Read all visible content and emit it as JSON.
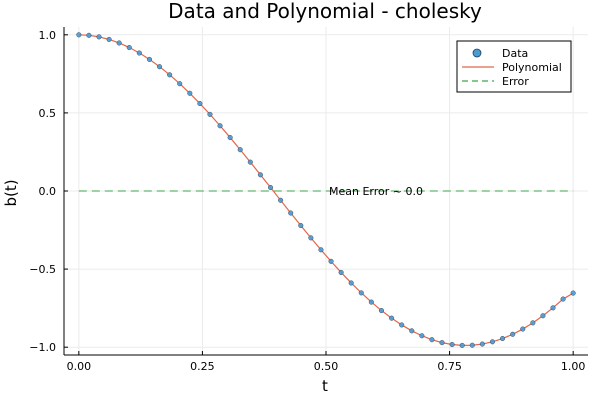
{
  "chart_data": {
    "type": "line",
    "title": "Data and Polynomial - cholesky",
    "xlabel": "t",
    "ylabel": "b(t)",
    "xlim": [
      -0.03,
      1.03
    ],
    "ylim": [
      -1.05,
      1.05
    ],
    "xticks": [
      0.0,
      0.25,
      0.5,
      0.75,
      1.0
    ],
    "xtick_labels": [
      "0.00",
      "0.25",
      "0.50",
      "0.75",
      "1.00"
    ],
    "yticks": [
      -1.0,
      -0.5,
      0.0,
      0.5,
      1.0
    ],
    "ytick_labels": [
      "−1.0",
      "−0.5",
      "0.0",
      "0.5",
      "1.0"
    ],
    "grid": true,
    "legend_position": "top-right",
    "annotation": {
      "text": "Mean Error ~ 0.0",
      "x": 0.5,
      "y": 0.0
    },
    "series": [
      {
        "name": "Data",
        "kind": "scatter",
        "color": "#4a9ad4",
        "x": [
          0.0,
          0.0204,
          0.0408,
          0.0612,
          0.0816,
          0.102,
          0.1224,
          0.1429,
          0.1633,
          0.1837,
          0.2041,
          0.2245,
          0.2449,
          0.2653,
          0.2857,
          0.3061,
          0.3265,
          0.3469,
          0.3673,
          0.3878,
          0.4082,
          0.4286,
          0.449,
          0.4694,
          0.4898,
          0.5102,
          0.5306,
          0.551,
          0.5714,
          0.5918,
          0.6122,
          0.6327,
          0.6531,
          0.6735,
          0.6939,
          0.7143,
          0.7347,
          0.7551,
          0.7755,
          0.7959,
          0.8163,
          0.8367,
          0.8571,
          0.8776,
          0.898,
          0.9184,
          0.9388,
          0.9592,
          0.9796,
          1.0
        ],
        "y": [
          1.0,
          0.9967,
          0.9869,
          0.9705,
          0.9477,
          0.9186,
          0.8835,
          0.8424,
          0.7958,
          0.7439,
          0.687,
          0.6255,
          0.5599,
          0.4905,
          0.4177,
          0.3422,
          0.2643,
          0.1847,
          0.1038,
          0.0222,
          -0.0596,
          -0.1409,
          -0.2212,
          -0.2999,
          -0.3764,
          -0.4505,
          -0.5215,
          -0.5888,
          -0.6522,
          -0.7112,
          -0.7653,
          -0.8142,
          -0.8576,
          -0.8952,
          -0.9267,
          -0.9519,
          -0.9707,
          -0.9829,
          -0.9885,
          -0.9875,
          -0.9798,
          -0.9655,
          -0.9446,
          -0.9174,
          -0.8838,
          -0.8442,
          -0.7988,
          -0.7479,
          -0.6918,
          -0.6536
        ]
      },
      {
        "name": "Polynomial",
        "kind": "line",
        "color": "#e2674a",
        "x": [
          0.0,
          0.0204,
          0.0408,
          0.0612,
          0.0816,
          0.102,
          0.1224,
          0.1429,
          0.1633,
          0.1837,
          0.2041,
          0.2245,
          0.2449,
          0.2653,
          0.2857,
          0.3061,
          0.3265,
          0.3469,
          0.3673,
          0.3878,
          0.4082,
          0.4286,
          0.449,
          0.4694,
          0.4898,
          0.5102,
          0.5306,
          0.551,
          0.5714,
          0.5918,
          0.6122,
          0.6327,
          0.6531,
          0.6735,
          0.6939,
          0.7143,
          0.7347,
          0.7551,
          0.7755,
          0.7959,
          0.8163,
          0.8367,
          0.8571,
          0.8776,
          0.898,
          0.9184,
          0.9388,
          0.9592,
          0.9796,
          1.0
        ],
        "y": [
          1.0,
          0.9967,
          0.9869,
          0.9705,
          0.9477,
          0.9186,
          0.8835,
          0.8424,
          0.7958,
          0.7439,
          0.687,
          0.6255,
          0.5599,
          0.4905,
          0.4177,
          0.3422,
          0.2643,
          0.1847,
          0.1038,
          0.0222,
          -0.0596,
          -0.1409,
          -0.2212,
          -0.2999,
          -0.3764,
          -0.4505,
          -0.5215,
          -0.5888,
          -0.6522,
          -0.7112,
          -0.7653,
          -0.8142,
          -0.8576,
          -0.8952,
          -0.9267,
          -0.9519,
          -0.9707,
          -0.9829,
          -0.9885,
          -0.9875,
          -0.9798,
          -0.9655,
          -0.9446,
          -0.9174,
          -0.8838,
          -0.8442,
          -0.7988,
          -0.7479,
          -0.6918,
          -0.6536
        ]
      },
      {
        "name": "Error",
        "kind": "dashed-line",
        "color": "#3ca64a",
        "x": [
          0.0,
          1.0
        ],
        "y": [
          0.0,
          0.0
        ]
      }
    ]
  }
}
